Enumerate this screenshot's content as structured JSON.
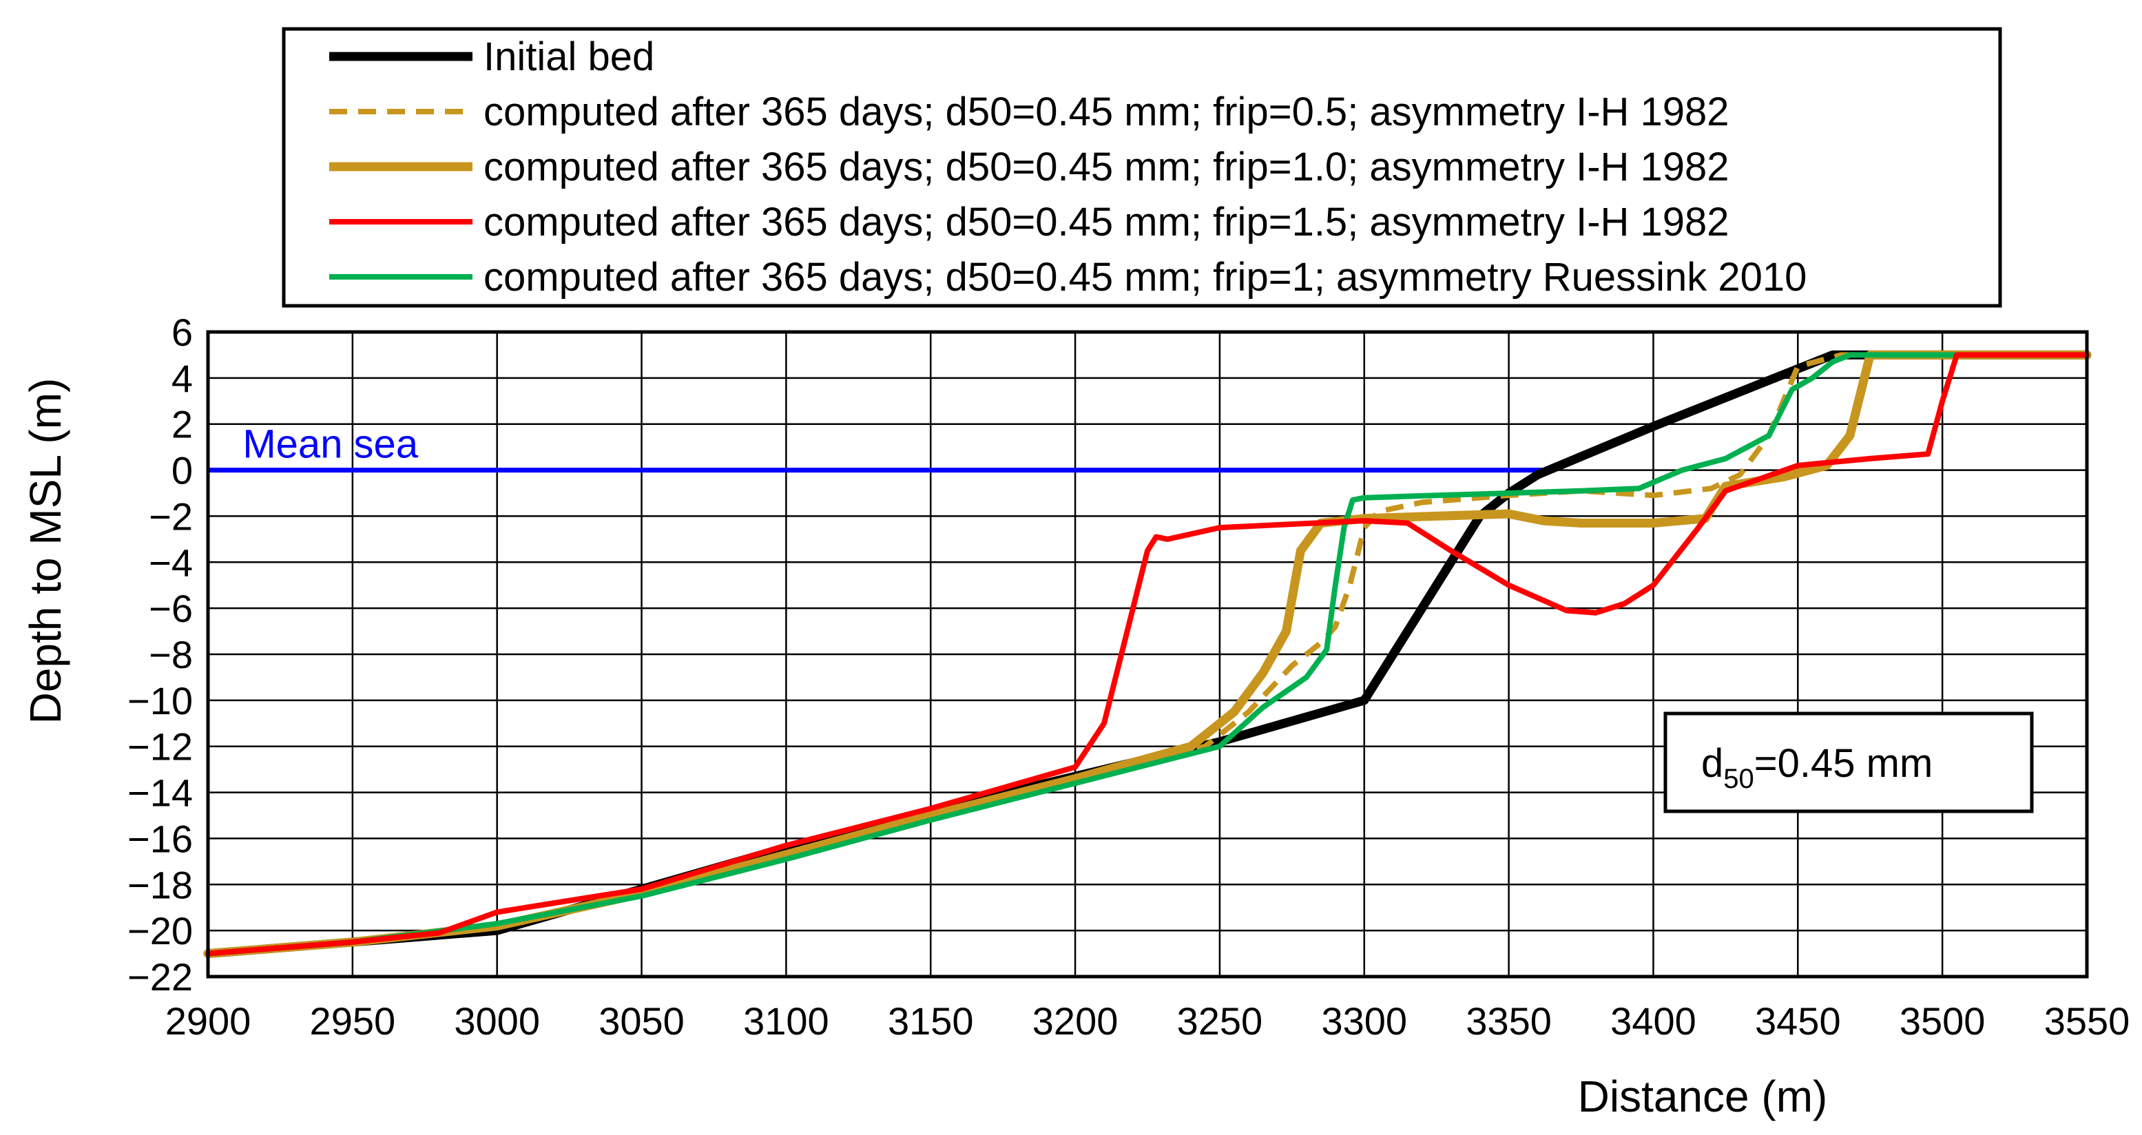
{
  "chart_data": {
    "type": "line",
    "title": "",
    "xlabel": "Distance (m)",
    "ylabel": "Depth to MSL (m)",
    "xlim": [
      2900,
      3550
    ],
    "ylim": [
      -22,
      6
    ],
    "xticks": [
      2900,
      2950,
      3000,
      3050,
      3100,
      3150,
      3200,
      3250,
      3300,
      3350,
      3400,
      3450,
      3500,
      3550
    ],
    "yticks": [
      6,
      4,
      2,
      0,
      -2,
      -4,
      -6,
      -8,
      -10,
      -12,
      -14,
      -16,
      -18,
      -20,
      -22
    ],
    "grid": true,
    "legend_position": "top",
    "mean_sea": {
      "label": "Mean sea",
      "color": "#0000ff",
      "x": [
        2900,
        3362
      ],
      "y": [
        0,
        0
      ]
    },
    "annotation": {
      "prefix": "d",
      "subscript": "50",
      "suffix": "=0.45 mm",
      "position": "bottom-right"
    },
    "series": [
      {
        "name": "Initial bed",
        "color": "#000000",
        "dash": "solid",
        "weight": "bold",
        "x": [
          2900,
          2950,
          2980,
          3000,
          3050,
          3100,
          3150,
          3200,
          3250,
          3300,
          3320,
          3340,
          3350,
          3360,
          3400,
          3450,
          3462,
          3470,
          3550
        ],
        "y": [
          -21,
          -20.5,
          -20.2,
          -20,
          -18.2,
          -16.4,
          -14.8,
          -13.3,
          -11.8,
          -10,
          -6,
          -2,
          -1,
          -0.2,
          1.9,
          4.4,
          5,
          5,
          5
        ]
      },
      {
        "name": "computed after 365 days; d50=0.45 mm; frip=0.5; asymmetry I-H 1982",
        "color": "#c8961e",
        "dash": "dashed",
        "weight": "normal",
        "x": [
          2900,
          2950,
          3000,
          3050,
          3100,
          3150,
          3200,
          3245,
          3260,
          3275,
          3285,
          3290,
          3295,
          3300,
          3305,
          3320,
          3350,
          3375,
          3400,
          3420,
          3430,
          3440,
          3445,
          3450,
          3465,
          3550
        ],
        "y": [
          -21,
          -20.5,
          -19.8,
          -18.4,
          -16.7,
          -15,
          -13.4,
          -12,
          -10.5,
          -8.5,
          -7.5,
          -6.8,
          -5,
          -2.5,
          -1.8,
          -1.4,
          -1.1,
          -0.9,
          -1.1,
          -0.8,
          -0.2,
          1.5,
          3,
          4.5,
          5,
          5
        ]
      },
      {
        "name": "computed after 365 days; d50=0.45 mm; frip=1.0; asymmetry I-H 1982",
        "color": "#c8961e",
        "dash": "solid",
        "weight": "bold",
        "x": [
          2900,
          2950,
          3000,
          3050,
          3100,
          3150,
          3200,
          3240,
          3255,
          3265,
          3273,
          3278,
          3285,
          3300,
          3325,
          3350,
          3362,
          3375,
          3400,
          3418,
          3425,
          3445,
          3460,
          3468,
          3475,
          3550
        ],
        "y": [
          -21,
          -20.5,
          -19.8,
          -18.4,
          -16.7,
          -15,
          -13.4,
          -12,
          -10.5,
          -8.8,
          -7,
          -3.5,
          -2.3,
          -2.1,
          -2,
          -1.9,
          -2.2,
          -2.3,
          -2.3,
          -2.1,
          -0.7,
          -0.3,
          0.2,
          1.5,
          5,
          5
        ]
      },
      {
        "name": "computed after 365 days; d50=0.45 mm; frip=1.5; asymmetry I-H 1982",
        "color": "#ff0000",
        "dash": "solid",
        "weight": "normal",
        "x": [
          2900,
          2950,
          2980,
          3000,
          3020,
          3050,
          3100,
          3150,
          3200,
          3210,
          3218,
          3225,
          3228,
          3232,
          3250,
          3300,
          3315,
          3330,
          3350,
          3370,
          3380,
          3390,
          3400,
          3415,
          3425,
          3450,
          3475,
          3495,
          3500,
          3505,
          3550
        ],
        "y": [
          -21,
          -20.5,
          -20.1,
          -19.2,
          -18.8,
          -18.2,
          -16.3,
          -14.7,
          -12.9,
          -11,
          -7,
          -3.5,
          -2.9,
          -3,
          -2.5,
          -2.2,
          -2.3,
          -3.5,
          -5,
          -6.1,
          -6.2,
          -5.8,
          -5,
          -2.6,
          -0.9,
          0.2,
          0.5,
          0.7,
          3,
          5,
          5
        ]
      },
      {
        "name": "computed after 365 days; d50=0.45 mm; frip=1; asymmetry Ruessink 2010",
        "color": "#00b050",
        "dash": "solid",
        "weight": "normal",
        "x": [
          2900,
          2950,
          3000,
          3050,
          3100,
          3150,
          3200,
          3250,
          3265,
          3280,
          3287,
          3290,
          3293,
          3296,
          3300,
          3325,
          3350,
          3375,
          3395,
          3410,
          3425,
          3440,
          3448,
          3455,
          3462,
          3468,
          3550
        ],
        "y": [
          -21,
          -20.5,
          -19.7,
          -18.5,
          -16.9,
          -15.2,
          -13.6,
          -12,
          -10.3,
          -9,
          -7.8,
          -5,
          -2.5,
          -1.3,
          -1.2,
          -1.1,
          -1,
          -0.9,
          -0.8,
          0,
          0.5,
          1.5,
          3.5,
          4,
          4.7,
          5,
          5
        ]
      }
    ]
  }
}
